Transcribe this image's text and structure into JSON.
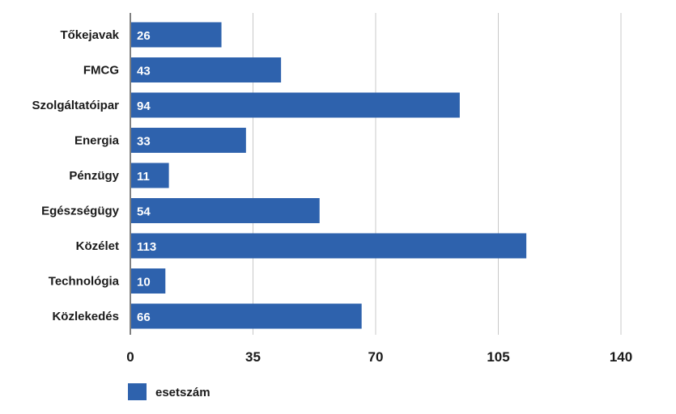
{
  "chart_data": {
    "type": "bar",
    "orientation": "horizontal",
    "categories": [
      "Tőkejavak",
      "FMCG",
      "Szolgáltatóipar",
      "Energia",
      "Pénzügy",
      "Egészségügy",
      "Közélet",
      "Technológia",
      "Közlekedés"
    ],
    "series": [
      {
        "name": "esetszám",
        "values": [
          26,
          43,
          94,
          33,
          11,
          54,
          113,
          10,
          66
        ],
        "color": "#2e62ad"
      }
    ],
    "xlim": [
      0,
      140
    ],
    "xticks": [
      0,
      35,
      70,
      105,
      140
    ],
    "xtick_labels": [
      "0",
      "35",
      "70",
      "105",
      "140"
    ],
    "grid": true,
    "legend_position": "bottom-left",
    "title": "",
    "xlabel": "",
    "ylabel": ""
  }
}
